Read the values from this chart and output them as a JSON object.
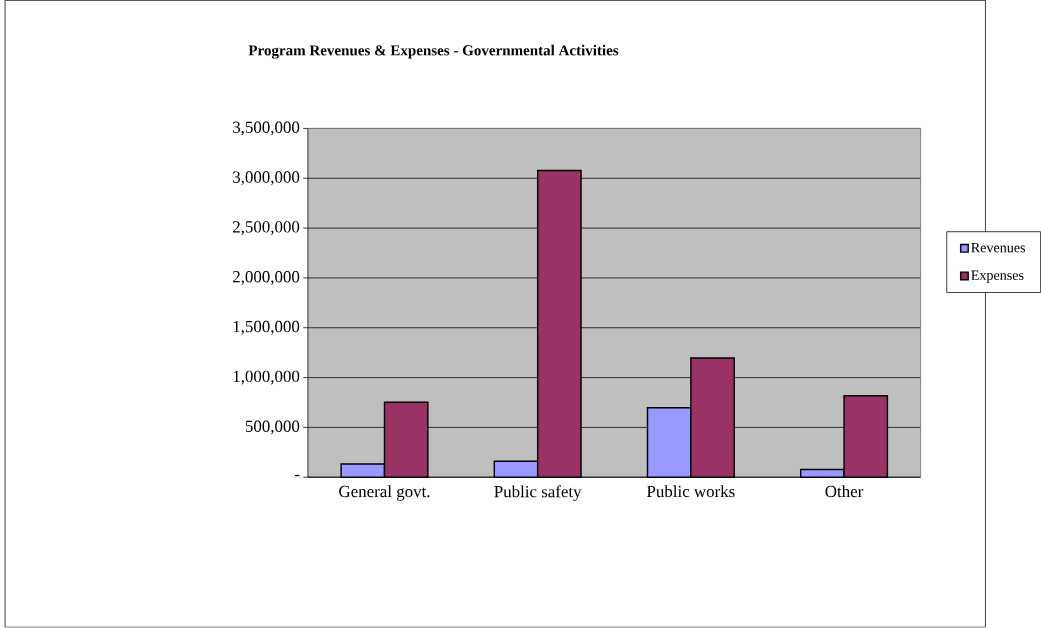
{
  "chart_data": {
    "type": "bar",
    "title": "Program Revenues & Expenses - Governmental Activities",
    "categories": [
      "General govt.",
      "Public safety",
      "Public works",
      "Other"
    ],
    "series": [
      {
        "name": "Revenues",
        "color": "#9999ff",
        "values": [
          133000,
          161000,
          697000,
          77000
        ]
      },
      {
        "name": "Expenses",
        "color": "#993366",
        "values": [
          753000,
          3078000,
          1197000,
          818000
        ]
      }
    ],
    "ylim": [
      0,
      3500000
    ],
    "yticks": [
      {
        "value": 0,
        "label": "-"
      },
      {
        "value": 500000,
        "label": "500,000"
      },
      {
        "value": 1000000,
        "label": "1,000,000"
      },
      {
        "value": 1500000,
        "label": "1,500,000"
      },
      {
        "value": 2000000,
        "label": "2,000,000"
      },
      {
        "value": 2500000,
        "label": "2,500,000"
      },
      {
        "value": 3000000,
        "label": "3,000,000"
      },
      {
        "value": 3500000,
        "label": "3,500,000"
      }
    ],
    "grid": "y",
    "legend": "right"
  }
}
